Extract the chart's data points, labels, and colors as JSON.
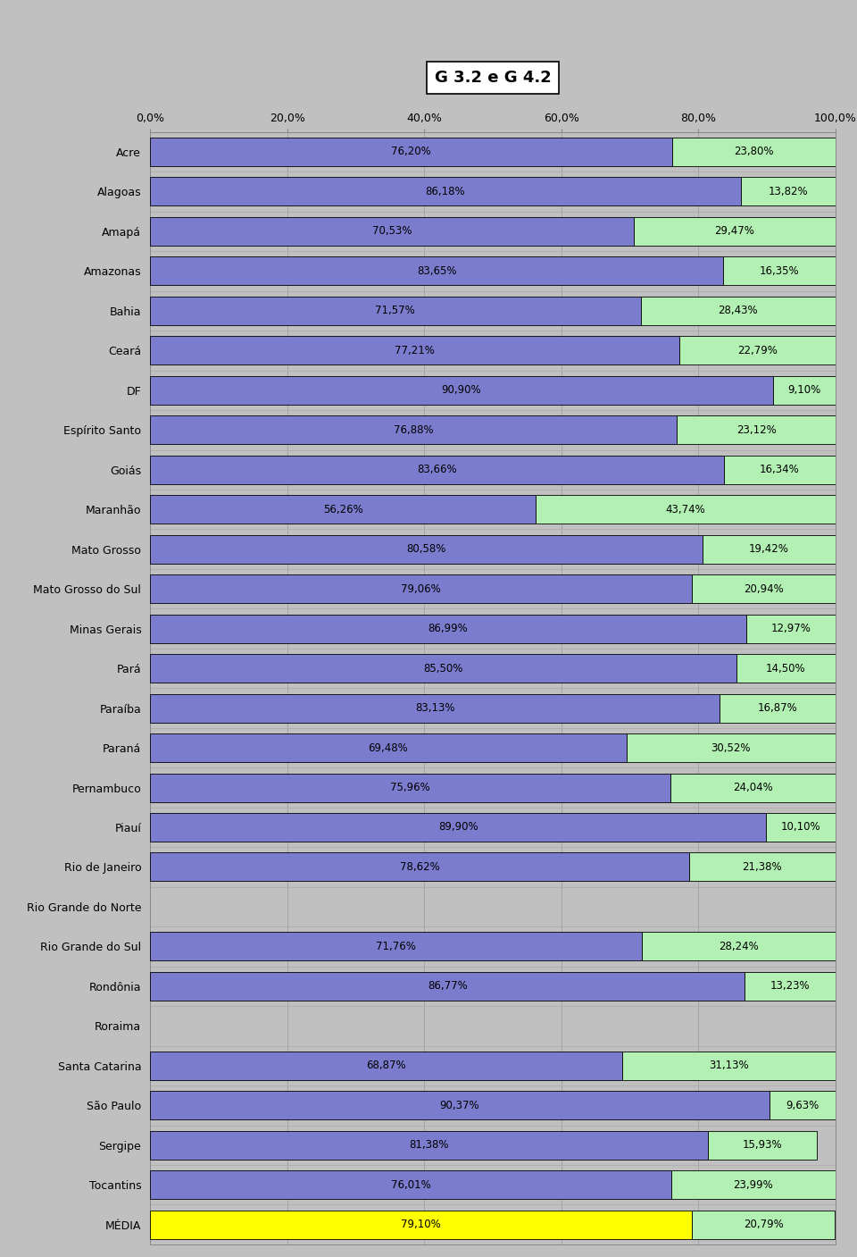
{
  "title": "G 3.2 e G 4.2",
  "categories": [
    "Acre",
    "Alagoas",
    "Amapá",
    "Amazonas",
    "Bahia",
    "Ceará",
    "DF",
    "Espírito Santo",
    "Goiás",
    "Maranhão",
    "Mato Grosso",
    "Mato Grosso do Sul",
    "Minas Gerais",
    "Pará",
    "Paraíba",
    "Paraná",
    "Pernambuco",
    "Piauí",
    "Rio de Janeiro",
    "Rio Grande do Norte",
    "Rio Grande do Sul",
    "Rondônia",
    "Roraima",
    "Santa Catarina",
    "São Paulo",
    "Sergipe",
    "Tocantins",
    "MÉDIA"
  ],
  "val1": [
    76.2,
    86.18,
    70.53,
    83.65,
    71.57,
    77.21,
    90.9,
    76.88,
    83.66,
    56.26,
    80.58,
    79.06,
    86.99,
    85.5,
    83.13,
    69.48,
    75.96,
    89.9,
    78.62,
    0.0,
    71.76,
    86.77,
    0.0,
    68.87,
    90.37,
    81.38,
    76.01,
    79.1
  ],
  "val2": [
    23.8,
    13.82,
    29.47,
    16.35,
    28.43,
    22.79,
    9.1,
    23.12,
    16.34,
    43.74,
    19.42,
    20.94,
    12.97,
    14.5,
    16.87,
    30.52,
    24.04,
    10.1,
    21.38,
    0.0,
    28.24,
    13.23,
    0.0,
    31.13,
    9.63,
    15.93,
    23.99,
    20.79
  ],
  "label1": [
    "76,20%",
    "86,18%",
    "70,53%",
    "83,65%",
    "71,57%",
    "77,21%",
    "90,90%",
    "76,88%",
    "83,66%",
    "56,26%",
    "80,58%",
    "79,06%",
    "86,99%",
    "85,50%",
    "83,13%",
    "69,48%",
    "75,96%",
    "89,90%",
    "78,62%",
    "",
    "71,76%",
    "86,77%",
    "",
    "68,87%",
    "90,37%",
    "81,38%",
    "76,01%",
    "79,10%"
  ],
  "label2": [
    "23,80%",
    "13,82%",
    "29,47%",
    "16,35%",
    "28,43%",
    "22,79%",
    "9,10%",
    "23,12%",
    "16,34%",
    "43,74%",
    "19,42%",
    "20,94%",
    "12,97%",
    "14,50%",
    "16,87%",
    "30,52%",
    "24,04%",
    "10,10%",
    "21,38%",
    "",
    "28,24%",
    "13,23%",
    "",
    "31,13%",
    "9,63%",
    "15,93%",
    "23,99%",
    "20,79%"
  ],
  "bar_color1": "#7b7cce",
  "bar_color2": "#b3f0b3",
  "media_color1": "#ffff00",
  "media_color2": "#b3f0b3",
  "bg_color": "#c0c0c0",
  "bar_edge_color": "#000000",
  "xticks": [
    0,
    20,
    40,
    60,
    80,
    100
  ],
  "xtick_labels": [
    "0,0%",
    "20,0%",
    "40,0%",
    "60,0%",
    "80,0%",
    "100,0%"
  ],
  "title_fontsize": 13,
  "label_fontsize": 8.5,
  "tick_fontsize": 9,
  "bar_height": 0.72
}
